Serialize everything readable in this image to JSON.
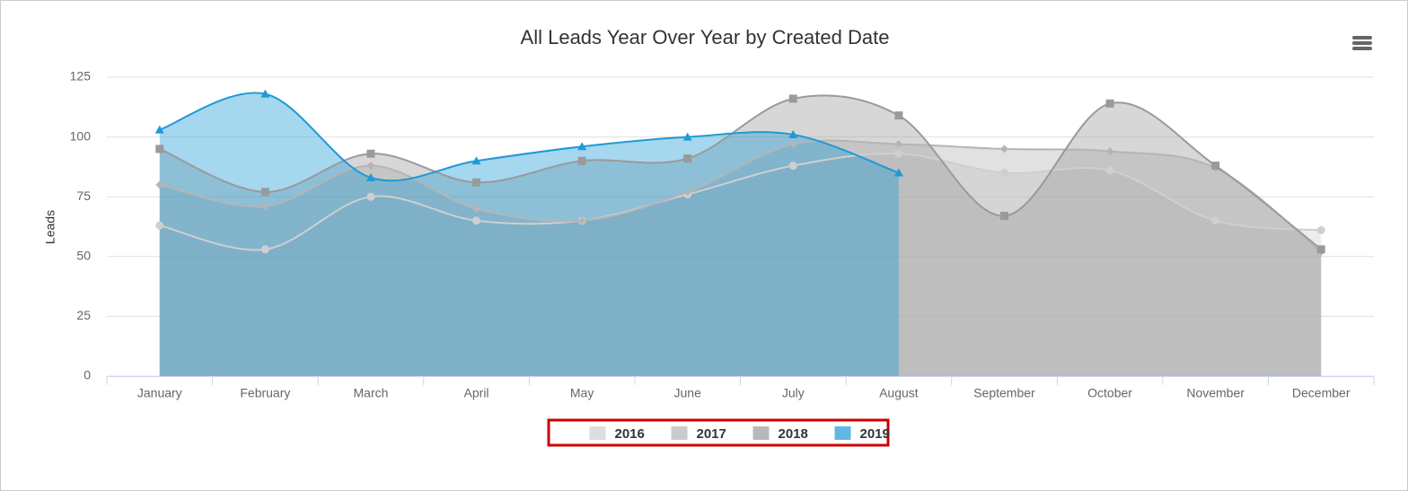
{
  "chart_data": {
    "type": "areaspline",
    "title": "All Leads Year Over Year by Created Date",
    "y_label": "Leads",
    "categories": [
      "January",
      "February",
      "March",
      "April",
      "May",
      "June",
      "July",
      "August",
      "September",
      "October",
      "November",
      "December"
    ],
    "series": [
      {
        "name": "2016",
        "color": "#cfcfcf",
        "marker": "circle",
        "values": [
          63,
          53,
          75,
          65,
          65,
          76,
          88,
          93,
          85,
          86,
          65,
          61
        ]
      },
      {
        "name": "2017",
        "color": "#b5b5b5",
        "marker": "diamond",
        "values": [
          80,
          71,
          88,
          70,
          65,
          77,
          97,
          97,
          95,
          94,
          87,
          52
        ]
      },
      {
        "name": "2018",
        "color": "#9a9a9a",
        "marker": "square",
        "values": [
          95,
          77,
          93,
          81,
          90,
          91,
          116,
          109,
          67,
          114,
          88,
          53
        ]
      },
      {
        "name": "2019",
        "color": "#1e9ad6",
        "marker": "triangle",
        "values": [
          103,
          118,
          83,
          90,
          96,
          100,
          101,
          85,
          null,
          null,
          null,
          null
        ]
      }
    ],
    "ylim": [
      0,
      125
    ],
    "yticks": [
      0,
      25,
      50,
      75,
      100,
      125
    ],
    "grid": true,
    "legend": "bottom"
  }
}
